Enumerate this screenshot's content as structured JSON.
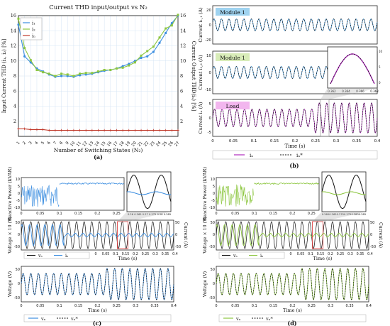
{
  "colors": {
    "blue": "#3c8ee0",
    "green": "#8cc63f",
    "red": "#c0392b",
    "magenta": "#b12bbf",
    "black": "#111111",
    "dashed_ref": "#3ab4d6",
    "highlight_blue": "#9fd3f0",
    "highlight_green": "#d8ecb8",
    "highlight_pink": "#f2b6ee",
    "zoom_box": "#d33"
  },
  "panel_labels": {
    "a": "(a)",
    "b": "(b)",
    "c": "(c)",
    "d": "(d)"
  },
  "chart_data": [
    {
      "id": "a",
      "type": "line",
      "title": "Current THD input/output vs N₂",
      "xlabel": "Number of Switching States (N₂)",
      "ylabel_left": "Input Current THD (i₁, i₂) [%]",
      "ylabel_right": "Current Output THD(iₙ) [%]",
      "x": [
        1,
        2,
        3,
        4,
        5,
        6,
        7,
        8,
        9,
        10,
        11,
        12,
        13,
        14,
        15,
        16,
        17,
        18,
        19,
        20,
        21,
        22,
        23,
        24,
        25,
        26,
        27
      ],
      "x_tick_labels": [
        "1",
        "2",
        "3",
        "4",
        "5",
        "6",
        "7",
        "8",
        "9",
        "10",
        "11",
        "12",
        "13",
        "14",
        "15",
        "16",
        "17",
        "18",
        "19",
        "20",
        "21",
        "22",
        "23",
        "24",
        "25",
        "26",
        "27"
      ],
      "ylim_left": [
        0,
        16
      ],
      "ylim_right": [
        0,
        16
      ],
      "y_ticks_left": [
        "2",
        "4",
        "6",
        "8",
        "10",
        "12",
        "14",
        "16"
      ],
      "y_ticks_right": [
        "2",
        "4",
        "6",
        "8",
        "10",
        "12",
        "14",
        "16"
      ],
      "grid": true,
      "legend": "top-left",
      "series": [
        {
          "name": "i₁",
          "color": "#3c8ee0",
          "values": [
            14.8,
            10.6,
            9.8,
            9.0,
            8.6,
            8.2,
            7.9,
            8.0,
            8.0,
            7.9,
            8.1,
            8.2,
            8.3,
            8.5,
            8.7,
            8.8,
            9.0,
            9.3,
            9.6,
            10.0,
            10.4,
            10.6,
            11.2,
            12.4,
            13.7,
            15.0,
            16.0
          ]
        },
        {
          "name": "i₂",
          "color": "#8cc63f",
          "values": [
            15.6,
            11.7,
            10.1,
            8.8,
            8.5,
            8.3,
            8.0,
            8.3,
            8.2,
            8.0,
            8.3,
            8.4,
            8.4,
            8.6,
            8.8,
            8.8,
            9.0,
            9.1,
            9.4,
            9.8,
            10.7,
            11.3,
            11.9,
            13.1,
            14.3,
            14.7,
            16.1
          ]
        },
        {
          "name": "iₙ",
          "color": "#c0392b",
          "values": [
            1.0,
            1.0,
            0.9,
            0.9,
            0.9,
            0.8,
            0.8,
            0.8,
            0.8,
            0.8,
            0.8,
            0.8,
            0.8,
            0.8,
            0.8,
            0.8,
            0.8,
            0.8,
            0.8,
            0.8,
            0.8,
            0.8,
            0.8,
            0.8,
            0.8,
            0.8,
            0.8
          ]
        }
      ]
    },
    {
      "id": "b",
      "type": "line",
      "xlabel": "Time (s)",
      "x_ticks": [
        "0",
        "0.05",
        "0.1",
        "0.15",
        "0.2",
        "0.25",
        "0.3",
        "0.35",
        "0.4"
      ],
      "subplots": [
        {
          "ylabel": "Current i₁,₁ (A)",
          "ylim": [
            -20,
            20
          ],
          "y_ticks": [
            "20",
            "0",
            "-20"
          ],
          "label": "Module 1",
          "label_color": "#9fd3f0"
        },
        {
          "ylabel": "Current i₁,₂ (A)",
          "ylim": [
            -10,
            10
          ],
          "y_ticks": [
            "10",
            "0",
            "-10"
          ],
          "label": "Module 1",
          "label_color": "#d8ecb8"
        },
        {
          "ylabel": "Current iₙ (A)",
          "ylim": [
            -5,
            5
          ],
          "y_ticks": [
            "5",
            "0",
            "-5"
          ],
          "label": "Load",
          "label_color": "#f2b6ee"
        }
      ],
      "inset": {
        "x_ticks": [
          "0.362",
          "0.364",
          "0.366",
          "0.368"
        ],
        "y_ticks": [
          "10",
          "5",
          "0"
        ]
      },
      "legend": [
        "iₙ",
        "iₙ*"
      ]
    },
    {
      "id": "c",
      "type": "line",
      "xlabel": "Time (s)",
      "x_ticks": [
        "0",
        "0.05",
        "0.1",
        "0.15",
        "0.2",
        "0.25",
        "0.3",
        "0.35",
        "0.4"
      ],
      "subplots": [
        {
          "ylabel": "Reactive Power (kVAR)",
          "ylim": [
            -10,
            10
          ],
          "y_ticks": [
            "10",
            "5",
            "0",
            "-5",
            "-10"
          ],
          "x_ticks": [
            "0",
            "0.05",
            "0.1",
            "0.15",
            "0.2",
            "0.25"
          ]
        },
        {
          "ylabel_left": "Voltage × 10 (V)",
          "ylabel_right": "Current (A)",
          "ylim": [
            -50,
            50
          ],
          "y_ticks": [
            "50",
            "0",
            "-50"
          ]
        },
        {
          "ylabel": "Voltage (V)",
          "ylim": [
            -50,
            50
          ],
          "y_ticks": [
            "50",
            "0",
            "-50"
          ]
        }
      ],
      "inset": {
        "x_ticks": [
          "0.26",
          "0.265",
          "0.27",
          "0.275",
          "0.28",
          "0.285"
        ]
      },
      "legend_mid": [
        "vₛ",
        "iₛ"
      ],
      "legend_bottom": [
        "vₙ",
        "vₙ*"
      ]
    },
    {
      "id": "d",
      "type": "line",
      "xlabel": "Time (s)",
      "x_ticks": [
        "0",
        "0.05",
        "0.1",
        "0.15",
        "0.2",
        "0.25",
        "0.3",
        "0.35",
        "0.4"
      ],
      "subplots": [
        {
          "ylabel": "Reactive Power (kVAR)",
          "ylim": [
            -10,
            10
          ],
          "y_ticks": [
            "10",
            "5",
            "0",
            "-5",
            "-10"
          ],
          "x_ticks": [
            "0",
            "0.05",
            "0.1",
            "0.15",
            "0.2",
            "0.25"
          ]
        },
        {
          "ylabel_left": "Voltage × 10 (V)",
          "ylabel_right": "Current (A)",
          "ylim": [
            -50,
            50
          ],
          "y_ticks": [
            "50",
            "0",
            "-50"
          ]
        },
        {
          "ylabel": "Voltage (V)",
          "ylim": [
            -50,
            50
          ],
          "y_ticks": [
            "50",
            "0",
            "-50"
          ]
        }
      ],
      "inset": {
        "x_ticks": [
          "0.260",
          "0.265",
          "0.270",
          "0.275",
          "0.280",
          "0.285"
        ]
      },
      "legend_mid": [
        "vₛ",
        "iₛ"
      ],
      "legend_bottom": [
        "vₙ",
        "vₙ*"
      ]
    }
  ]
}
